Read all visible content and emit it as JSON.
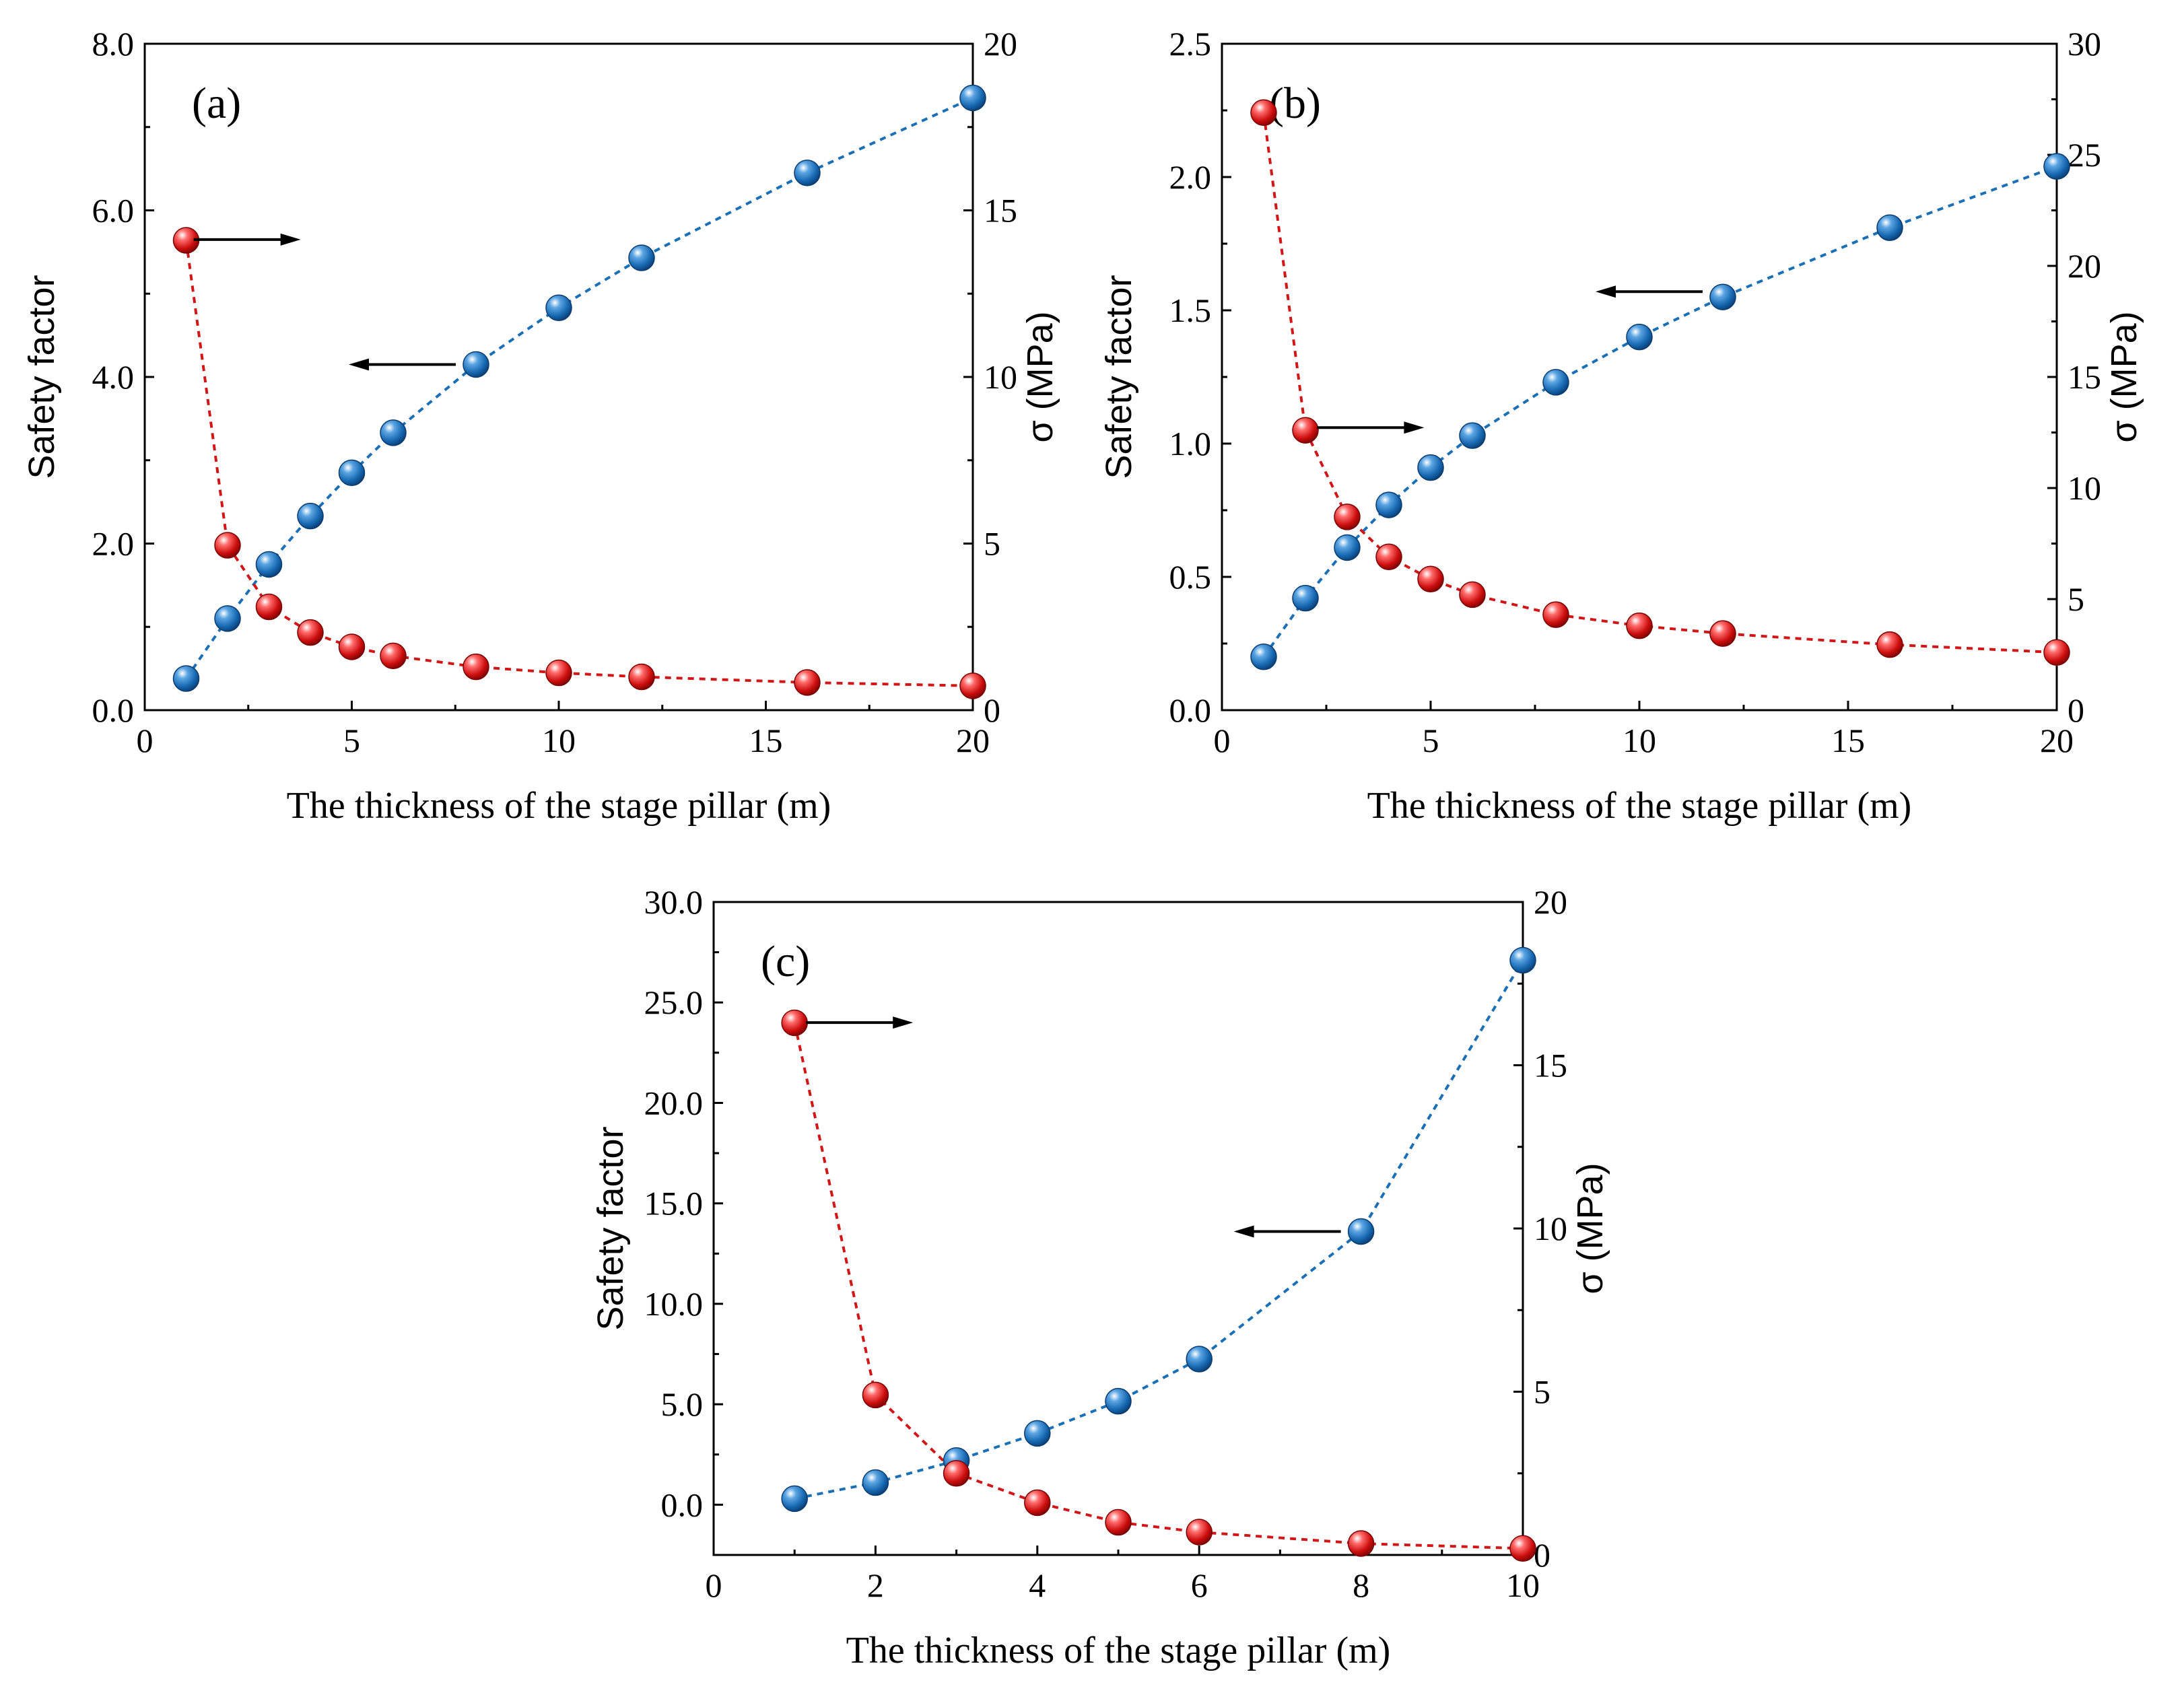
{
  "chart_data": [
    {
      "type": "scatter",
      "panel_label": "(a)",
      "xlabel": "The thickness of the stage pillar (m)",
      "ylabel_left": "Safety factor",
      "ylabel_right": "σ (MPa)",
      "xlim": [
        0,
        20
      ],
      "ylim_left": [
        0,
        8
      ],
      "ylim_right": [
        0,
        20
      ],
      "xticks": [
        0,
        5,
        10,
        15,
        20
      ],
      "yticks_left": [
        "0.0",
        "2.0",
        "4.0",
        "6.0",
        "8.0"
      ],
      "yticks_right": [
        "0",
        "5",
        "10",
        "15",
        "20"
      ],
      "series": [
        {
          "name": "Safety factor",
          "axis": "left",
          "color": "#1a6fb5",
          "x": [
            1,
            2,
            3,
            4,
            5,
            6,
            8,
            10,
            12,
            16,
            20
          ],
          "y": [
            0.38,
            1.1,
            1.75,
            2.33,
            2.85,
            3.33,
            4.15,
            4.83,
            5.43,
            6.45,
            7.35
          ]
        },
        {
          "name": "σ (MPa)",
          "axis": "right",
          "color": "#d01616",
          "x": [
            1,
            2,
            3,
            4,
            5,
            6,
            8,
            10,
            12,
            16,
            20
          ],
          "y": [
            14.1,
            4.95,
            3.1,
            2.33,
            1.9,
            1.63,
            1.3,
            1.12,
            1.0,
            0.83,
            0.73
          ]
        }
      ],
      "arrows": [
        {
          "direction": "right",
          "x": 1.1,
          "y_left": 5.65
        },
        {
          "direction": "left",
          "x": 8.0,
          "y_left": 4.15
        }
      ]
    },
    {
      "type": "scatter",
      "panel_label": "(b)",
      "xlabel": "The thickness of the stage pillar (m)",
      "ylabel_left": "Safety factor",
      "ylabel_right": "σ (MPa)",
      "xlim": [
        0,
        20
      ],
      "ylim_left": [
        0,
        2.5
      ],
      "ylim_right": [
        0,
        30
      ],
      "xticks": [
        0,
        5,
        10,
        15,
        20
      ],
      "yticks_left": [
        "0.0",
        "0.5",
        "1.0",
        "1.5",
        "2.0",
        "2.5"
      ],
      "yticks_right": [
        "0",
        "5",
        "10",
        "15",
        "20",
        "25",
        "30"
      ],
      "series": [
        {
          "name": "Safety factor",
          "axis": "left",
          "color": "#1a6fb5",
          "x": [
            1,
            2,
            3,
            4,
            5,
            6,
            8,
            10,
            12,
            16,
            20
          ],
          "y": [
            0.2,
            0.42,
            0.61,
            0.77,
            0.91,
            1.03,
            1.23,
            1.4,
            1.55,
            1.81,
            2.04
          ]
        },
        {
          "name": "σ (MPa)",
          "axis": "right",
          "color": "#d01616",
          "x": [
            1,
            2,
            3,
            4,
            5,
            6,
            8,
            10,
            12,
            16,
            20
          ],
          "y": [
            26.9,
            12.6,
            8.7,
            6.9,
            5.9,
            5.2,
            4.3,
            3.8,
            3.45,
            2.95,
            2.6
          ]
        }
      ],
      "arrows": [
        {
          "direction": "right",
          "x": 2.2,
          "y_left": 1.06
        },
        {
          "direction": "left",
          "x": 12.0,
          "y_left": 1.57
        }
      ]
    },
    {
      "type": "scatter",
      "panel_label": "(c)",
      "xlabel": "The thickness of the stage pillar (m)",
      "ylabel_left": "Safety factor",
      "ylabel_right": "σ (MPa)",
      "xlim": [
        0,
        10
      ],
      "ylim_left": [
        -2.5,
        30
      ],
      "ylim_right": [
        0,
        20
      ],
      "xticks": [
        0,
        2,
        4,
        6,
        8,
        10
      ],
      "yticks_left": [
        "0.0",
        "5.0",
        "10.0",
        "15.0",
        "20.0",
        "25.0",
        "30.0"
      ],
      "yticks_right": [
        "0",
        "5",
        "10",
        "15",
        "20"
      ],
      "series": [
        {
          "name": "Safety factor",
          "axis": "left",
          "color": "#1a6fb5",
          "x": [
            1,
            2,
            3,
            4,
            5,
            6,
            8,
            10
          ],
          "y": [
            0.3,
            1.1,
            2.2,
            3.55,
            5.15,
            7.25,
            13.6,
            27.1
          ]
        },
        {
          "name": "σ (MPa)",
          "axis": "right",
          "color": "#d01616",
          "x": [
            1,
            2,
            3,
            4,
            5,
            6,
            8,
            10
          ],
          "y": [
            16.3,
            4.9,
            2.5,
            1.6,
            1.0,
            0.7,
            0.35,
            0.2
          ]
        }
      ],
      "arrows": [
        {
          "direction": "right",
          "x": 1.1,
          "y_left": 24.0
        },
        {
          "direction": "left",
          "x": 8.0,
          "y_left": 13.6
        }
      ]
    }
  ]
}
